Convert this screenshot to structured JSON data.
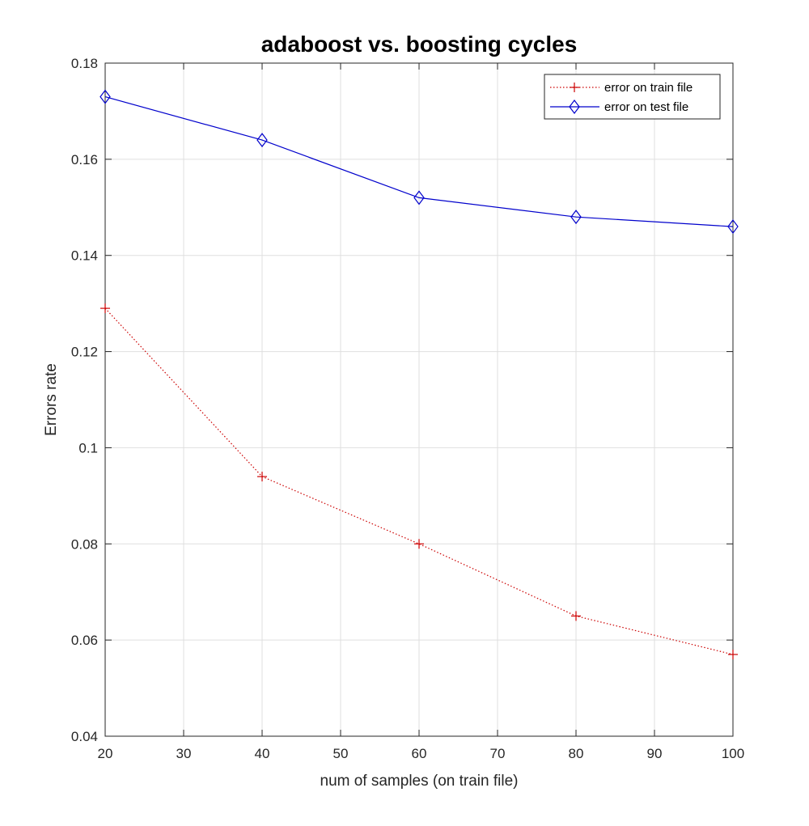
{
  "chart_data": {
    "type": "line",
    "title": "adaboost vs. boosting cycles",
    "xlabel": "num of samples (on train file)",
    "ylabel": "Errors rate",
    "xlim": [
      20,
      100
    ],
    "ylim": [
      0.04,
      0.18
    ],
    "xticks": [
      20,
      30,
      40,
      50,
      60,
      70,
      80,
      90,
      100
    ],
    "yticks": [
      0.04,
      0.06,
      0.08,
      0.1,
      0.12,
      0.14,
      0.16,
      0.18
    ],
    "xtick_labels": [
      "20",
      "30",
      "40",
      "50",
      "60",
      "70",
      "80",
      "90",
      "100"
    ],
    "ytick_labels": [
      "0.04",
      "0.06",
      "0.08",
      "0.1",
      "0.12",
      "0.14",
      "0.16",
      "0.18"
    ],
    "grid": true,
    "legend_position": "top-right",
    "x": [
      20,
      40,
      60,
      80,
      100
    ],
    "series": [
      {
        "name": "error on train file",
        "values": [
          0.129,
          0.094,
          0.08,
          0.065,
          0.057
        ],
        "color": "#cc0000",
        "line_style": "dotted",
        "marker": "plus"
      },
      {
        "name": "error on test file",
        "values": [
          0.173,
          0.164,
          0.152,
          0.148,
          0.146
        ],
        "color": "#0000cc",
        "line_style": "solid",
        "marker": "diamond"
      }
    ]
  }
}
